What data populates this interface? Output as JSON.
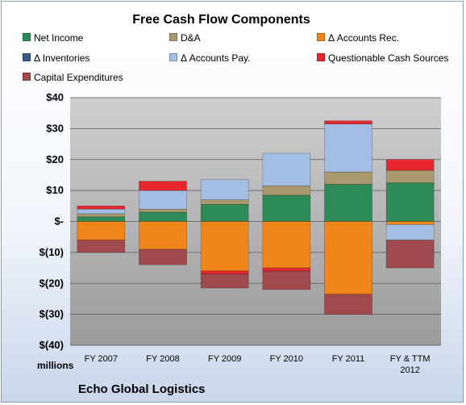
{
  "company": "Echo Global Logistics",
  "units_label": "millions",
  "chart_data": {
    "type": "bar",
    "stacked": true,
    "title": "Free Cash Flow Components",
    "xlabel": "",
    "ylabel": "",
    "ylim": [
      -40,
      40
    ],
    "grid": true,
    "legend_position": "top",
    "categories": [
      "FY 2007",
      "FY 2008",
      "FY 2009",
      "FY 2010",
      "FY 2011",
      "FY & TTM\n2012"
    ],
    "y_tick_labels": [
      "$40",
      "$30",
      "$20",
      "$10",
      "$-",
      "$(10)",
      "$(20)",
      "$(30)",
      "$(40)"
    ],
    "series": [
      {
        "name": "Net Income",
        "color": "#2e8b57",
        "values": [
          1.5,
          3,
          5.5,
          8.5,
          12,
          12.5
        ]
      },
      {
        "name": "D&A",
        "color": "#a89a6e",
        "values": [
          1,
          1,
          1.5,
          3,
          4,
          4
        ]
      },
      {
        "name": "Δ Accounts Rec.",
        "color": "#f0861a",
        "values": [
          -6,
          -9,
          -16,
          -15,
          -23.5,
          -1
        ]
      },
      {
        "name": "Δ Inventories",
        "color": "#3b5a85",
        "values": [
          0,
          0,
          0,
          0,
          0,
          0
        ]
      },
      {
        "name": "Δ Accounts Pay.",
        "color": "#a4bde2",
        "values": [
          1.5,
          6,
          6.5,
          10.5,
          15.5,
          -5
        ]
      },
      {
        "name": "Questionable Cash Sources",
        "color": "#e8262d",
        "values": [
          1,
          3,
          -1,
          -1,
          1,
          3.5
        ]
      },
      {
        "name": "Capital Expenditures",
        "color": "#a04a4e",
        "values": [
          -4,
          -5,
          -4.5,
          -6,
          -6.5,
          -9
        ]
      }
    ]
  }
}
